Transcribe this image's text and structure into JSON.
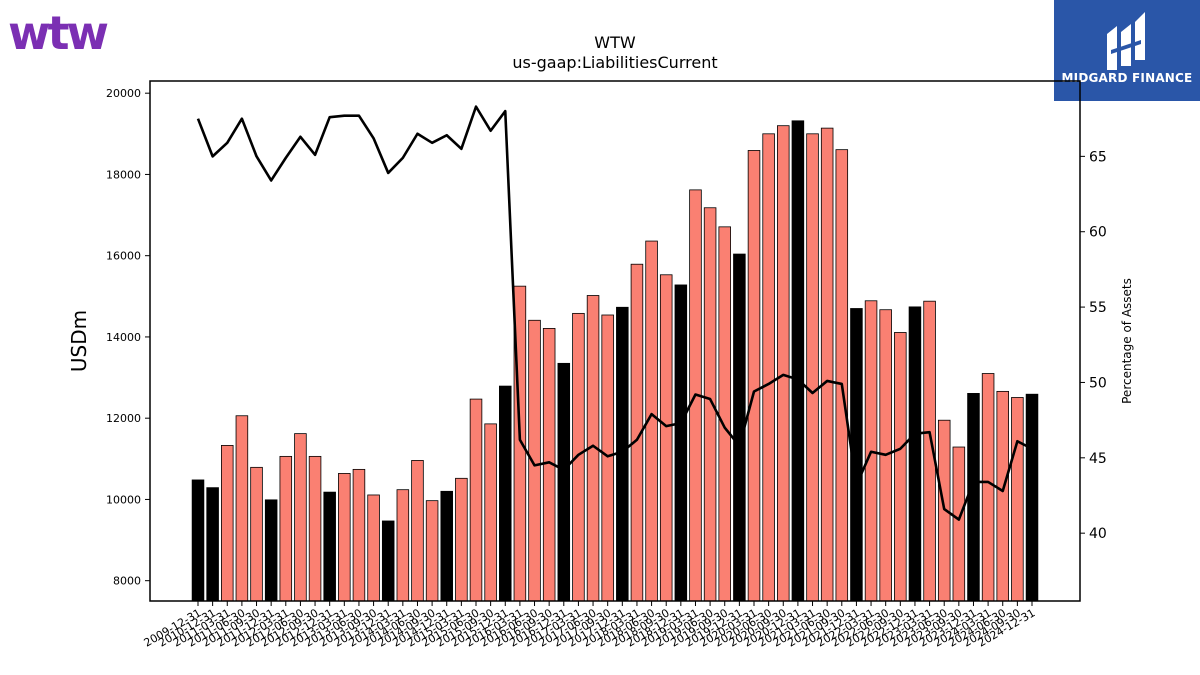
{
  "brand": {
    "left_logo_text": "wtw",
    "right_logo_text": "MIDGARD FINANCE",
    "left_logo_color": "#7b2fb3",
    "right_logo_bg": "#2a56a8"
  },
  "chart_data": {
    "type": "bar",
    "title": "WTW",
    "subtitle": "us-gaap:LiabilitiesCurrent",
    "ylabel": "USDm",
    "y2label": "Percentage of Assets",
    "ylim": [
      7500,
      20300
    ],
    "y2lim": [
      35.5,
      70
    ],
    "yticks": [
      8000,
      10000,
      12000,
      14000,
      16000,
      18000,
      20000
    ],
    "y2ticks": [
      40,
      45,
      50,
      55,
      60,
      65
    ],
    "grid": false,
    "colors": {
      "quarter": "#fa8072",
      "year_end": "#000000",
      "line": "#000000"
    },
    "categories": [
      "2009-12-31",
      "2010-12-31",
      "2011-03-31",
      "2011-06-30",
      "2011-09-30",
      "2011-12-31",
      "2012-03-31",
      "2012-06-30",
      "2012-09-30",
      "2012-12-31",
      "2013-03-31",
      "2013-06-30",
      "2013-09-30",
      "2013-12-31",
      "2014-03-31",
      "2014-06-30",
      "2014-09-30",
      "2014-12-31",
      "2015-03-31",
      "2015-06-30",
      "2015-09-30",
      "2015-12-31",
      "2016-03-31",
      "2016-06-30",
      "2016-09-30",
      "2016-12-31",
      "2017-03-31",
      "2017-06-30",
      "2017-09-30",
      "2017-12-31",
      "2018-03-31",
      "2018-06-30",
      "2018-09-30",
      "2018-12-31",
      "2019-03-31",
      "2019-06-30",
      "2019-09-30",
      "2019-12-31",
      "2020-03-31",
      "2020-06-30",
      "2020-09-30",
      "2020-12-31",
      "2021-03-31",
      "2021-06-30",
      "2021-09-30",
      "2021-12-31",
      "2022-03-31",
      "2022-06-30",
      "2022-09-30",
      "2022-12-31",
      "2023-03-31",
      "2023-06-30",
      "2023-09-30",
      "2023-12-31",
      "2024-03-31",
      "2024-06-30",
      "2024-09-30",
      "2024-12-31"
    ],
    "year_end": [
      true,
      true,
      false,
      false,
      false,
      true,
      false,
      false,
      false,
      true,
      false,
      false,
      false,
      true,
      false,
      false,
      false,
      true,
      false,
      false,
      false,
      true,
      false,
      false,
      false,
      true,
      false,
      false,
      false,
      true,
      false,
      false,
      false,
      true,
      false,
      false,
      false,
      true,
      false,
      false,
      false,
      true,
      false,
      false,
      false,
      true,
      false,
      false,
      false,
      true,
      false,
      false,
      false,
      true,
      false,
      false,
      false,
      true
    ],
    "series": [
      {
        "name": "",
        "axis": "left",
        "values": [
          10480,
          10290,
          11330,
          12060,
          10790,
          9990,
          11060,
          11620,
          11060,
          10180,
          10640,
          10740,
          10110,
          9470,
          10240,
          10960,
          9970,
          10200,
          10520,
          12470,
          11860,
          12790,
          15250,
          14410,
          14210,
          13350,
          14580,
          15020,
          14540,
          14730,
          15790,
          16360,
          15530,
          15280,
          17620,
          17180,
          16710,
          16040,
          18590,
          19000,
          19200,
          19320,
          19000,
          19140,
          18610,
          14700,
          14890,
          14670,
          14110,
          14740,
          14880,
          11950,
          11290,
          12610,
          13100,
          12660,
          12510,
          12590
        ]
      },
      {
        "name": "",
        "axis": "right",
        "values": [
          67.5,
          65.0,
          65.9,
          67.5,
          65.0,
          63.4,
          64.9,
          66.3,
          65.1,
          67.6,
          67.7,
          67.7,
          66.2,
          63.9,
          64.9,
          66.5,
          65.9,
          66.4,
          65.5,
          68.3,
          66.7,
          68.0,
          46.2,
          44.5,
          44.7,
          44.2,
          45.2,
          45.8,
          45.1,
          45.4,
          46.2,
          47.9,
          47.1,
          47.3,
          49.2,
          48.9,
          47.0,
          45.8,
          49.4,
          49.9,
          50.5,
          50.2,
          49.3,
          50.1,
          49.9,
          43.2,
          45.4,
          45.2,
          45.6,
          46.6,
          46.7,
          41.6,
          40.9,
          43.4,
          43.4,
          42.8,
          46.1,
          45.6
        ]
      }
    ]
  }
}
